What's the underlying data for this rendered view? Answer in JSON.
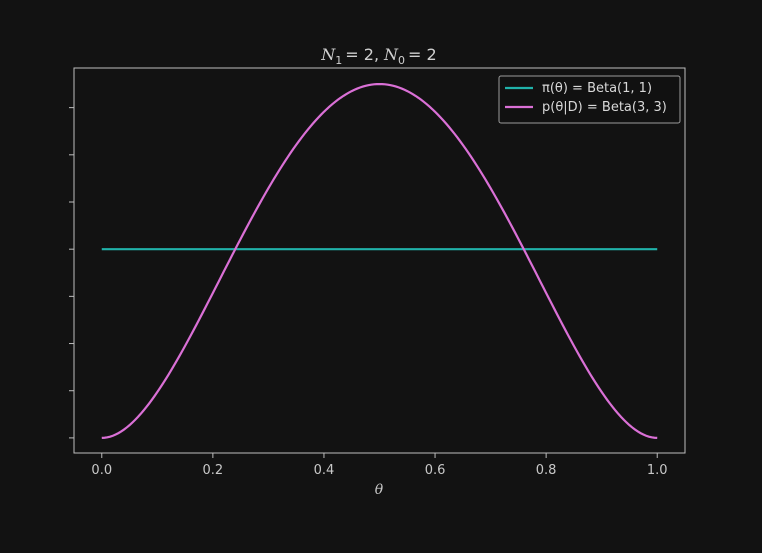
{
  "chart_data": {
    "type": "line",
    "title": {
      "n1_symbol": "N",
      "n1_sub": "1",
      "n1_value": "= 2,",
      "n0_symbol": "N",
      "n0_sub": "0",
      "n0_value": "= 2"
    },
    "xlabel": "θ",
    "ylabel": "",
    "xlim": [
      -0.05,
      1.05
    ],
    "ylim": [
      -0.08,
      1.96
    ],
    "x_ticks": [
      "0.0",
      "0.2",
      "0.4",
      "0.6",
      "0.8",
      "1.0"
    ],
    "x_tick_values": [
      0.0,
      0.2,
      0.4,
      0.6,
      0.8,
      1.0
    ],
    "y_tick_values": [
      0.0,
      0.25,
      0.5,
      0.75,
      1.0,
      1.25,
      1.5,
      1.75
    ],
    "y_tick_labels_visible": false,
    "grid": false,
    "legend_position": "top-right",
    "series": [
      {
        "name": "π(θ) = Beta(1, 1)",
        "distribution": "Beta",
        "alpha": 1,
        "beta": 1,
        "color": "#20b2aa",
        "x": [
          0.0,
          1.0
        ],
        "y": [
          1.0,
          1.0
        ]
      },
      {
        "name": "p(θ|D) = Beta(3, 3)",
        "distribution": "Beta",
        "alpha": 3,
        "beta": 3,
        "color": "#da70d6",
        "x": [
          0.0,
          0.1,
          0.2,
          0.25,
          0.3,
          0.4,
          0.5,
          0.6,
          0.7,
          0.75,
          0.8,
          0.9,
          1.0
        ],
        "y": [
          0.0,
          0.243,
          0.768,
          1.055,
          1.323,
          1.728,
          1.875,
          1.728,
          1.323,
          1.055,
          0.768,
          0.243,
          0.0
        ]
      }
    ]
  },
  "colors": {
    "background": "#121212",
    "axes_edge": "#bdbdbd",
    "text": "#c8c8c8"
  }
}
